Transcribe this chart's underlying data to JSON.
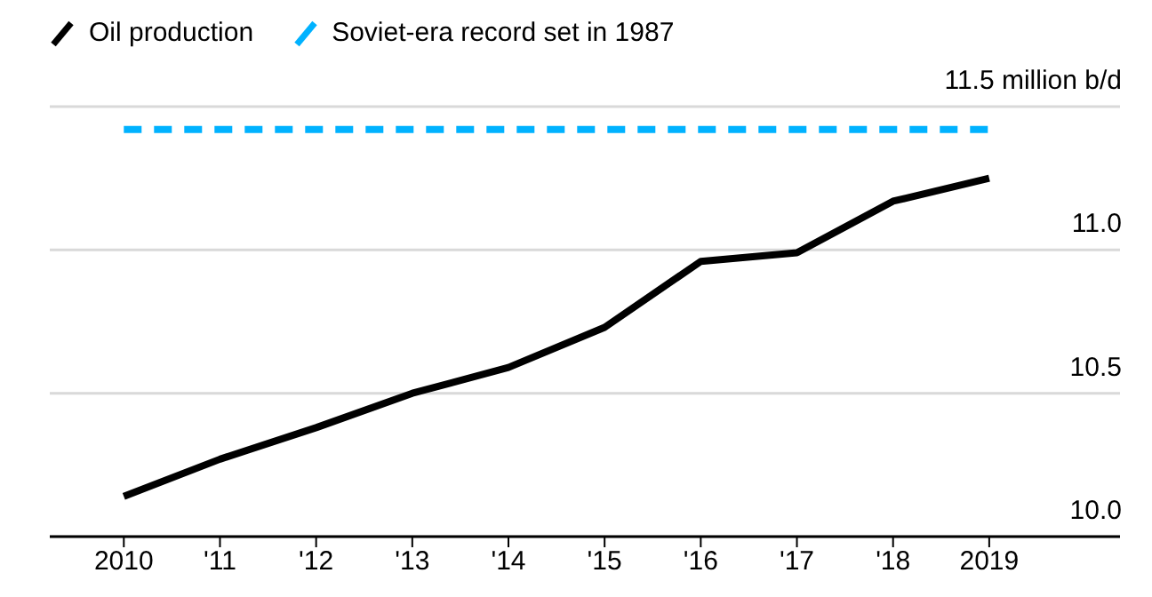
{
  "chart_data": {
    "type": "line",
    "categories": [
      "2010",
      "'11",
      "'12",
      "'13",
      "'14",
      "'15",
      "'16",
      "'17",
      "'18",
      "2019"
    ],
    "series": [
      {
        "name": "Oil production",
        "color": "#000000",
        "values": [
          10.14,
          10.27,
          10.38,
          10.5,
          10.59,
          10.73,
          10.96,
          10.99,
          11.17,
          11.25
        ]
      }
    ],
    "ref_lines": [
      {
        "axis": "y",
        "value": 11.42,
        "label": "Soviet-era record set in 1987",
        "color": "#00b2ff",
        "line_style": "dashed"
      }
    ],
    "ylim": [
      10,
      11.5
    ],
    "yticks": [
      {
        "value": 10,
        "label": "10.0"
      },
      10.5,
      {
        "value": 11,
        "label": "11.0"
      },
      {
        "value": 11.5,
        "label": "11.5 million b/d"
      }
    ],
    "grid": "y",
    "legend": "top left",
    "marker": "none",
    "line_style": "solid"
  }
}
